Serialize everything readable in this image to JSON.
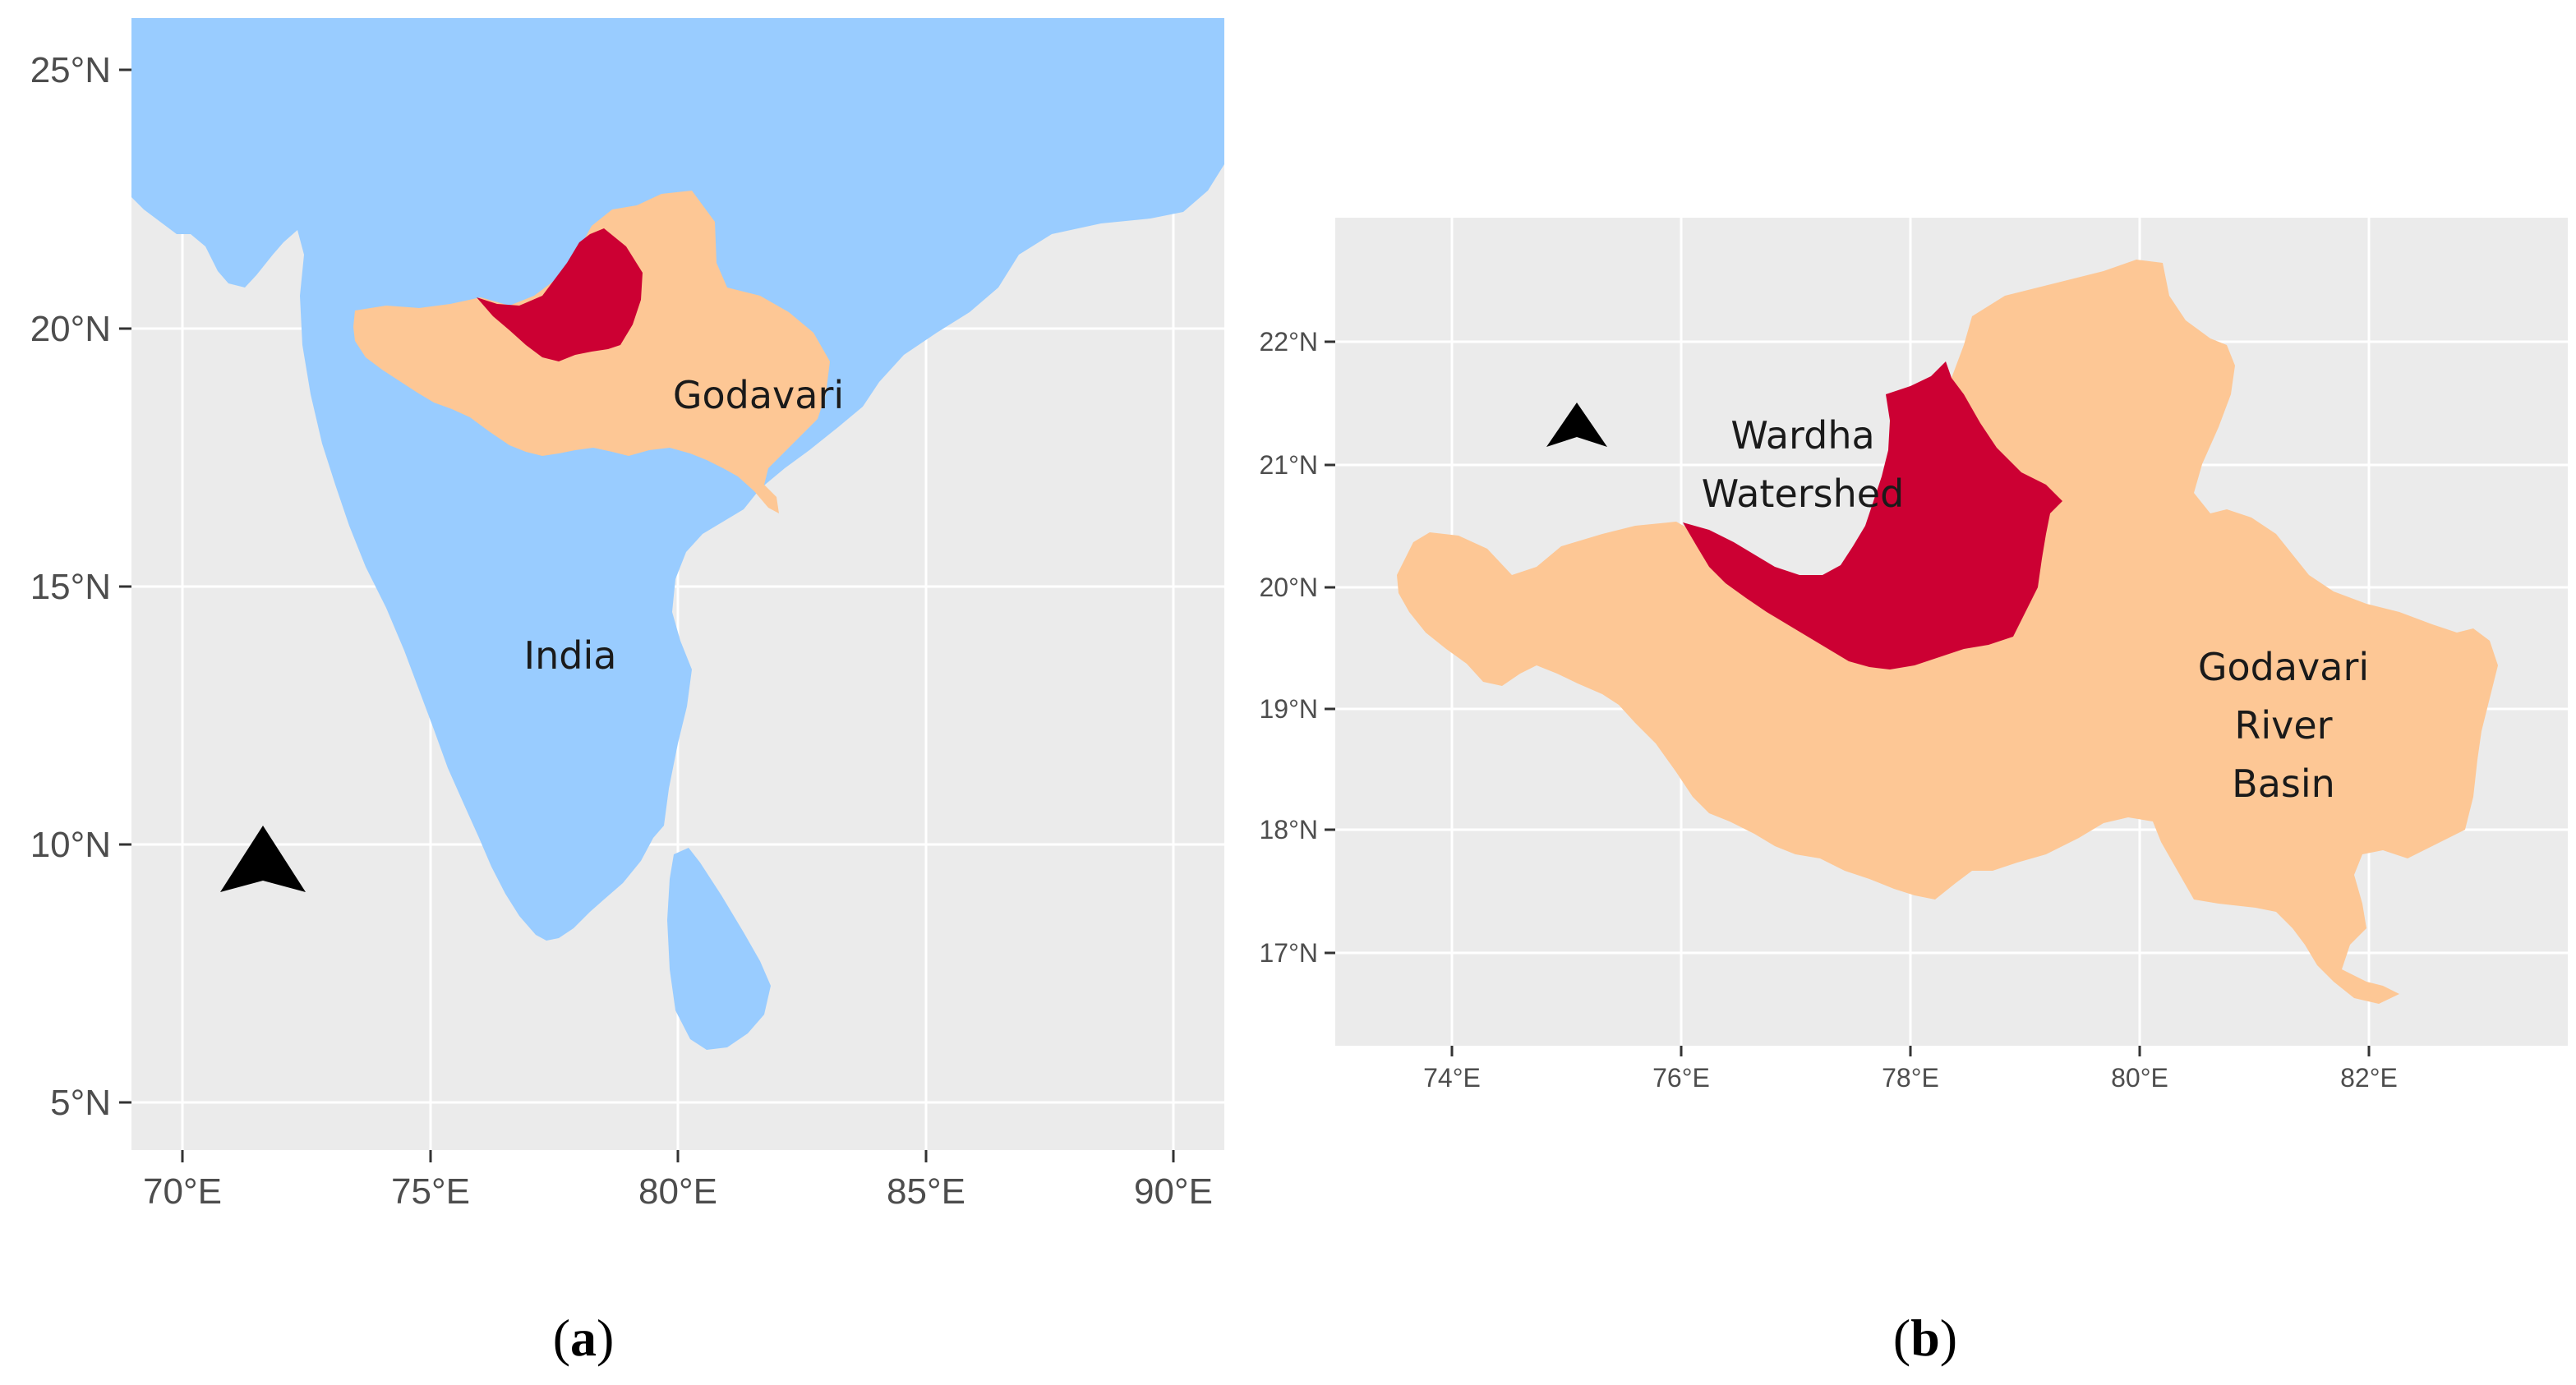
{
  "colors": {
    "panel_background": "#ebebeb",
    "gridline": "#ffffff",
    "sea_land_india": "#99ccff",
    "godavari_basin": "#fdc795",
    "wardha_watershed": "#cc0033",
    "north_arrow": "#000000",
    "tick_text": "#4d4d4d"
  },
  "panel_a": {
    "caption": {
      "open": "(",
      "letter": "a",
      "close": ")"
    },
    "x_axis": {
      "range": [
        69,
        91
      ],
      "ticks": [
        "70°E",
        "75°E",
        "80°E",
        "85°E",
        "90°E"
      ],
      "tick_values": [
        70,
        75,
        80,
        85,
        90
      ]
    },
    "y_axis": {
      "range": [
        4,
        26
      ],
      "ticks": [
        "25°N",
        "20°N",
        "15°N",
        "10°N",
        "5°N"
      ],
      "tick_values": [
        25,
        20,
        15,
        10,
        5
      ]
    },
    "labels": {
      "godavari": "Godavari",
      "india": "India"
    },
    "north_arrow_icon": "north-arrow-icon"
  },
  "panel_b": {
    "caption": {
      "open": "(",
      "letter": "b",
      "close": ")"
    },
    "x_axis": {
      "range": [
        73,
        83.6
      ],
      "ticks": [
        "74°E",
        "76°E",
        "78°E",
        "80°E",
        "82°E"
      ],
      "tick_values": [
        74,
        76,
        78,
        80,
        82
      ]
    },
    "y_axis": {
      "range": [
        16.3,
        23
      ],
      "ticks": [
        "22°N",
        "21°N",
        "20°N",
        "19°N",
        "18°N",
        "17°N"
      ],
      "tick_values": [
        22,
        21,
        20,
        19,
        18,
        17
      ]
    },
    "labels": {
      "wardha_line1": "Wardha",
      "wardha_line2": "Watershed",
      "godavari_line1": "Godavari",
      "godavari_line2": "River",
      "godavari_line3": "Basin"
    },
    "north_arrow_icon": "north-arrow-icon"
  }
}
